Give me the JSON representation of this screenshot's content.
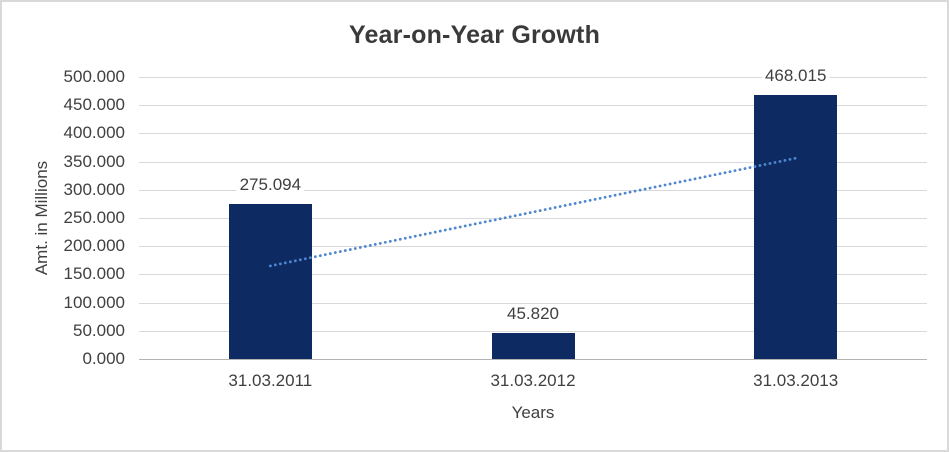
{
  "window": {
    "background": "#ffffff",
    "border_color": "#d9d9d9"
  },
  "chart_data": {
    "type": "bar",
    "title": "Year-on-Year Growth",
    "xlabel": "Years",
    "ylabel": "Amt. in Millions",
    "categories": [
      "31.03.2011",
      "31.03.2012",
      "31.03.2013"
    ],
    "values": [
      275.094,
      45.82,
      468.015
    ],
    "data_labels": [
      "275.094",
      "45.820",
      "468.015"
    ],
    "yticks": [
      "500.000",
      "450.000",
      "400.000",
      "350.000",
      "300.000",
      "250.000",
      "200.000",
      "150.000",
      "100.000",
      "50.000",
      "0.000"
    ],
    "ylim": [
      0,
      500
    ],
    "grid": true,
    "legend": "none",
    "colors": {
      "bar": "#0e2a62",
      "trendline": "#4e86cf",
      "gridline": "#d9d9d9",
      "axis_line": "#b3b3b3",
      "text": "#404040",
      "title": "#3a3a3a"
    },
    "trendline": {
      "type": "linear",
      "style": "dotted",
      "from_category_index": 0,
      "to_category_index": 2,
      "start_value": 165,
      "end_value": 356
    }
  }
}
